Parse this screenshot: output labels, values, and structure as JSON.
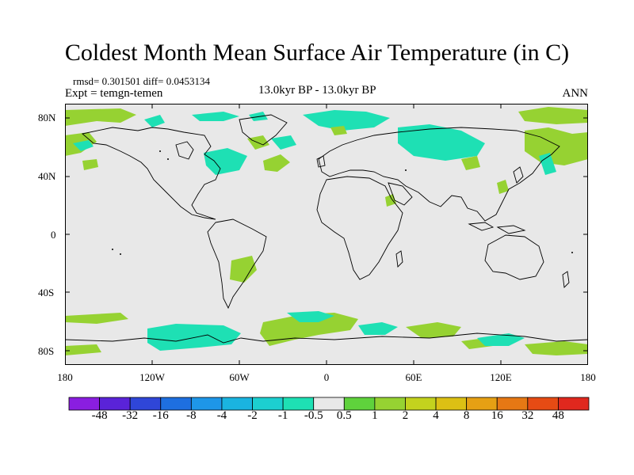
{
  "title": "Coldest Month Mean Surface Air Temperature (in C)",
  "stats": "rmsd= 0.301501  diff= 0.0453134",
  "experiment": "Expt = temgn-temen",
  "period": "13.0kyr BP - 13.0kyr BP",
  "season": "ANN",
  "lat_labels": [
    "80N",
    "40N",
    "0",
    "40S",
    "80S"
  ],
  "lon_labels": [
    "180",
    "120W",
    "60W",
    "0",
    "60E",
    "120E",
    "180"
  ],
  "colorbar": {
    "labels": [
      "-48",
      "-32",
      "-16",
      "-8",
      "-4",
      "-2",
      "-1",
      "-0.5",
      "0.5",
      "1",
      "2",
      "4",
      "8",
      "16",
      "32",
      "48"
    ],
    "colors": [
      "#8a1ee0",
      "#5a23d8",
      "#2f46d8",
      "#1e6fe0",
      "#1e96e8",
      "#1ab4e0",
      "#1ccfd0",
      "#1ee0b4",
      "#e8e8e8",
      "#5fd23c",
      "#96d232",
      "#c3d21e",
      "#dcc014",
      "#e6a014",
      "#e67814",
      "#e64b14",
      "#e0281e"
    ]
  },
  "colors": {
    "background": "#e8e8e8",
    "positive_anomaly": "#96d232",
    "negative_anomaly": "#1ee0b4",
    "coastline": "#000000"
  }
}
